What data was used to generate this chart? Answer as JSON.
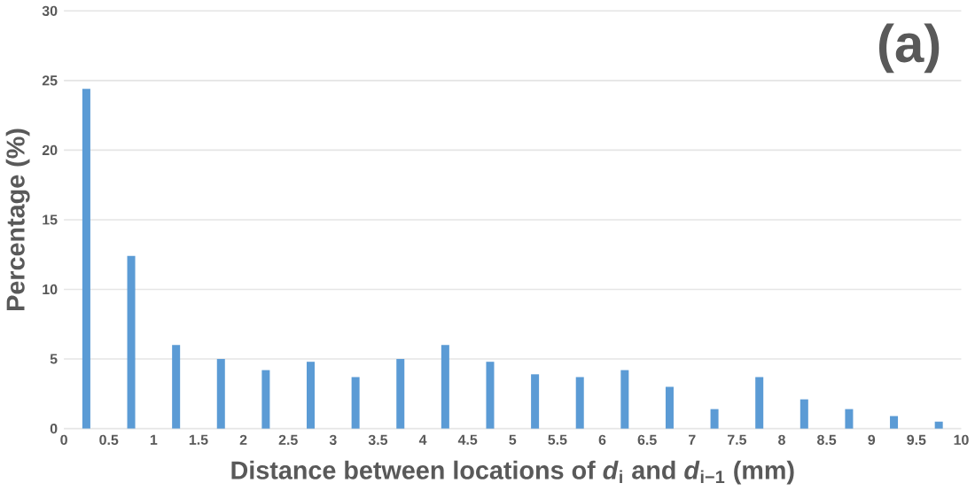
{
  "chart_data": {
    "type": "histogram",
    "xlabel": "Distance between locations of *d*$_{i}$ and *d*$_{i−1}$ (mm)",
    "ylabel": "Percentage (%)",
    "annotations": [
      "(a)"
    ],
    "bins": [
      0,
      0.5,
      1,
      1.5,
      2,
      2.5,
      3,
      3.5,
      4,
      4.5,
      5,
      5.5,
      6,
      6.5,
      7,
      7.5,
      8,
      8.5,
      9,
      9.5,
      10
    ],
    "values": [
      24.4,
      12.4,
      6,
      5,
      4.2,
      4.8,
      3.7,
      5,
      6,
      4.8,
      3.9,
      3.7,
      4.2,
      3,
      1.4,
      3.7,
      2.1,
      1.4,
      0.9,
      0.5
    ],
    "color": "#5b9bd5",
    "xlim": [
      0,
      10
    ],
    "ylim": [
      0,
      30
    ],
    "xticks": [
      0,
      0.5,
      1,
      1.5,
      2,
      2.5,
      3,
      3.5,
      4,
      4.5,
      5,
      5.5,
      6,
      6.5,
      7,
      7.5,
      8,
      8.5,
      9,
      9.5,
      10
    ],
    "yticks": [
      0,
      5,
      10,
      15,
      20,
      25,
      30
    ],
    "grid": "y"
  }
}
